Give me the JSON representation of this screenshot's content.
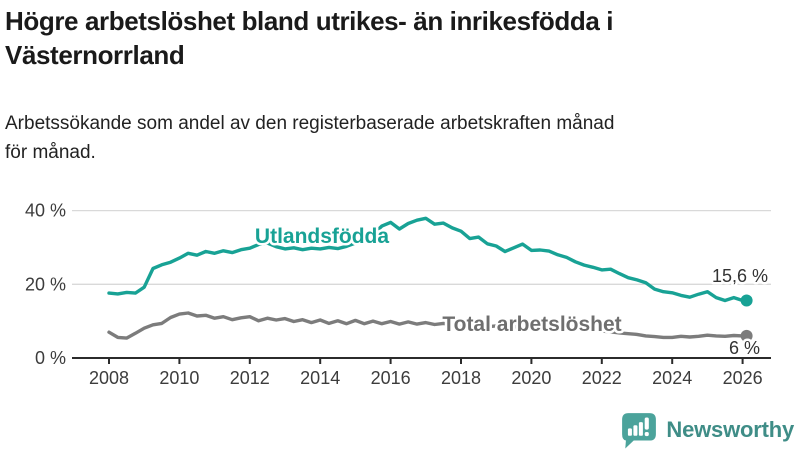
{
  "header": {
    "title_lines": [
      "Högre arbetslöshet bland utrikes- än inrikesfödda i",
      "Västernorrland"
    ],
    "subtitle_lines": [
      "Arbetssökande som andel av den registerbaserade arbetskraften månad",
      "för månad."
    ]
  },
  "branding": {
    "name": "Newsworthy",
    "icon": "speech-bubble-with-bar-chart-and-exclamation",
    "icon_color": "#4BA39B",
    "text_color": "#3F8D87"
  },
  "colors": {
    "title": "#1a1a1a",
    "subtitle": "#222222",
    "axis": "#2b2b2b",
    "gridline": "#d9d9d9",
    "tick_text": "#3c3c3c",
    "value_label_text": "#333333",
    "series_foreign_born": "#18A295",
    "series_total": "#7C7C7C",
    "series_total_label": "#6F6F6F"
  },
  "chart_data": {
    "type": "line",
    "title": "Högre arbetslöshet bland utrikes- än inrikesfödda i Västernorrland",
    "subtitle": "Arbetssökande som andel av den registerbaserade arbetskraften månad för månad.",
    "unit": "%",
    "grid": "horizontal",
    "legend_position": "inline-labels",
    "x_start": 2008,
    "x_step_years": 0.25,
    "x_ticks": [
      2008,
      2010,
      2012,
      2014,
      2016,
      2018,
      2020,
      2022,
      2024,
      2026
    ],
    "xlim": [
      2007.9,
      2026.8
    ],
    "ylim": [
      0,
      44
    ],
    "y_ticks": [
      {
        "value": 0,
        "label": "0 %"
      },
      {
        "value": 20,
        "label": "20 %"
      },
      {
        "value": 40,
        "label": "40 %"
      }
    ],
    "series": [
      {
        "name": "Utlandsfödda",
        "color": "#18A295",
        "end_value": 15.6,
        "end_label": "15,6 %",
        "values": [
          17.6,
          17.4,
          17.8,
          17.6,
          19.2,
          24.3,
          25.3,
          26.0,
          27.1,
          28.4,
          27.9,
          28.9,
          28.4,
          29.1,
          28.6,
          29.4,
          29.8,
          30.8,
          31.2,
          30.2,
          29.6,
          29.9,
          29.4,
          29.8,
          29.6,
          30.0,
          29.7,
          30.3,
          31.2,
          32.2,
          33.5,
          35.8,
          36.8,
          35.0,
          36.5,
          37.4,
          37.9,
          36.3,
          36.6,
          35.3,
          34.4,
          32.4,
          32.8,
          31.0,
          30.4,
          28.9,
          29.9,
          30.9,
          29.2,
          29.3,
          29.0,
          28.0,
          27.3,
          26.1,
          25.2,
          24.6,
          23.9,
          24.1,
          22.9,
          21.8,
          21.2,
          20.4,
          18.7,
          18.0,
          17.7,
          17.0,
          16.5,
          17.3,
          18.0,
          16.4,
          15.6,
          16.4,
          15.6
        ]
      },
      {
        "name": "Total arbetslöshet",
        "color": "#7C7C7C",
        "end_value": 6,
        "end_label": "6 %",
        "values": [
          7.0,
          5.6,
          5.4,
          6.7,
          8.1,
          9.0,
          9.4,
          11.0,
          11.9,
          12.2,
          11.4,
          11.6,
          10.8,
          11.2,
          10.4,
          10.9,
          11.2,
          10.1,
          10.8,
          10.3,
          10.7,
          9.9,
          10.4,
          9.6,
          10.3,
          9.4,
          10.1,
          9.3,
          10.2,
          9.3,
          10.0,
          9.3,
          9.9,
          9.2,
          9.8,
          9.2,
          9.6,
          9.1,
          9.4,
          9.0,
          9.2,
          8.7,
          8.9,
          8.5,
          8.7,
          8.3,
          8.5,
          8.4,
          8.7,
          9.6,
          9.3,
          8.9,
          8.7,
          8.3,
          7.9,
          7.6,
          7.3,
          7.1,
          6.8,
          6.6,
          6.4,
          6.0,
          5.8,
          5.6,
          5.6,
          5.9,
          5.7,
          5.9,
          6.2,
          6.0,
          5.9,
          6.1,
          6.0
        ]
      }
    ]
  }
}
